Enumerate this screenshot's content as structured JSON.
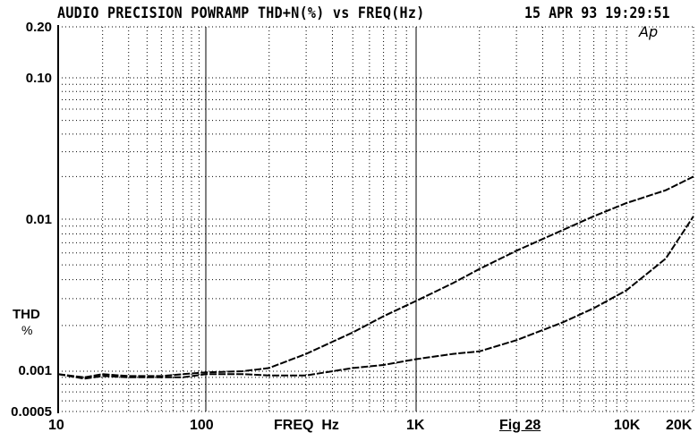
{
  "header": {
    "title": "AUDIO PRECISION POWRAMP THD+N(%) vs FREQ(Hz)",
    "timestamp": "15 APR 93 19:29:51",
    "logo": "Ap"
  },
  "axes": {
    "y_ticks": [
      "0.20",
      "0.10",
      "0.01",
      "0.001",
      "0.0005"
    ],
    "x_ticks": [
      "10",
      "100",
      "1K",
      "10K",
      "20K"
    ],
    "y_title_line1": "THD",
    "y_title_line2": "%",
    "x_title": "FREQ  Hz"
  },
  "figure_label": "Fig 28",
  "chart_data": {
    "type": "line",
    "title": "AUDIO PRECISION POWRAMP THD+N(%) vs FREQ(Hz)",
    "subtitle": "15 APR 93 19:29:51",
    "xlabel": "FREQ Hz",
    "ylabel": "THD %",
    "xscale": "log",
    "yscale": "log",
    "xlim": [
      10,
      20000
    ],
    "ylim": [
      0.0005,
      0.2
    ],
    "x_tick_labels": [
      "10",
      "100",
      "1K",
      "10K",
      "20K"
    ],
    "y_tick_labels": [
      "0.0005",
      "0.001",
      "0.01",
      "0.10",
      "0.20"
    ],
    "grid": true,
    "legend": null,
    "annotations": [
      "Fig 28",
      "Ap"
    ],
    "series": [
      {
        "name": "Upper curve",
        "x": [
          10,
          15,
          20,
          30,
          50,
          70,
          100,
          150,
          200,
          300,
          500,
          700,
          1000,
          1500,
          2000,
          3000,
          5000,
          7000,
          10000,
          15000,
          20000
        ],
        "values": [
          0.00095,
          0.0009,
          0.00095,
          0.00092,
          0.00092,
          0.00095,
          0.00098,
          0.001,
          0.00105,
          0.0013,
          0.0018,
          0.0023,
          0.0029,
          0.0038,
          0.0047,
          0.0062,
          0.0085,
          0.0105,
          0.013,
          0.016,
          0.02
        ]
      },
      {
        "name": "Lower curve",
        "x": [
          10,
          15,
          20,
          30,
          50,
          70,
          100,
          150,
          200,
          300,
          500,
          700,
          1000,
          1500,
          2000,
          3000,
          5000,
          7000,
          10000,
          15000,
          20000
        ],
        "values": [
          0.00095,
          0.00088,
          0.00092,
          0.0009,
          0.0009,
          0.0009,
          0.00095,
          0.00095,
          0.00093,
          0.00093,
          0.00105,
          0.0011,
          0.0012,
          0.0013,
          0.00135,
          0.0016,
          0.0021,
          0.0026,
          0.0034,
          0.0055,
          0.0105
        ]
      }
    ]
  }
}
